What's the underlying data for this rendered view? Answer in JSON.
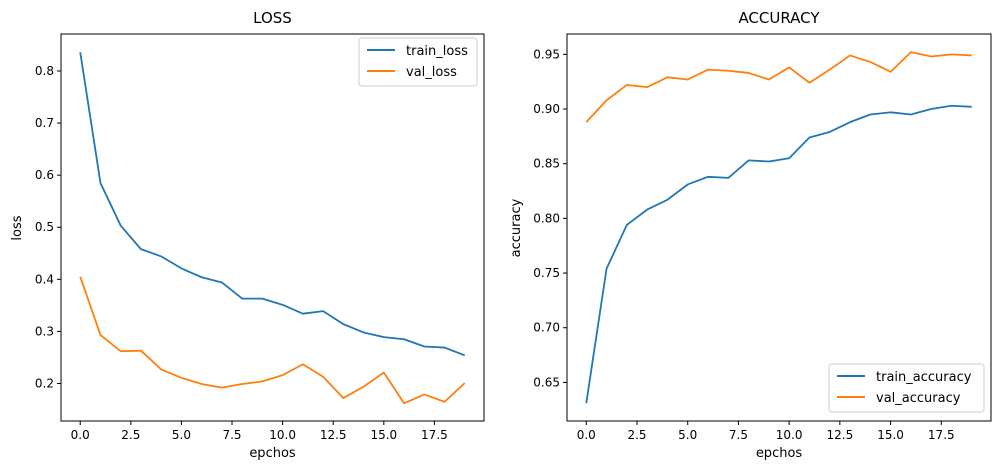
{
  "chart_data": [
    {
      "type": "line",
      "title": "LOSS",
      "xlabel": "epchos",
      "ylabel": "loss",
      "xlim": [
        -0.95,
        19.95
      ],
      "ylim": [
        0.128,
        0.871
      ],
      "xticks": [
        0.0,
        2.5,
        5.0,
        7.5,
        10.0,
        12.5,
        15.0,
        17.5
      ],
      "xtick_labels": [
        "0.0",
        "2.5",
        "5.0",
        "7.5",
        "10.0",
        "12.5",
        "15.0",
        "17.5"
      ],
      "yticks": [
        0.2,
        0.3,
        0.4,
        0.5,
        0.6,
        0.7,
        0.8
      ],
      "ytick_labels": [
        "0.2",
        "0.3",
        "0.4",
        "0.5",
        "0.6",
        "0.7",
        "0.8"
      ],
      "x": [
        0,
        1,
        2,
        3,
        4,
        5,
        6,
        7,
        8,
        9,
        10,
        11,
        12,
        13,
        14,
        15,
        16,
        17,
        18,
        19
      ],
      "legend_position": "upper-right",
      "grid": false,
      "series": [
        {
          "name": "train_loss",
          "color": "#1f77b4",
          "values": [
            0.836,
            0.585,
            0.503,
            0.458,
            0.444,
            0.421,
            0.404,
            0.394,
            0.363,
            0.363,
            0.351,
            0.334,
            0.339,
            0.314,
            0.298,
            0.289,
            0.285,
            0.271,
            0.269,
            0.254
          ]
        },
        {
          "name": "val_loss",
          "color": "#ff7f0e",
          "values": [
            0.405,
            0.293,
            0.262,
            0.263,
            0.227,
            0.211,
            0.199,
            0.192,
            0.199,
            0.204,
            0.216,
            0.237,
            0.213,
            0.172,
            0.194,
            0.221,
            0.162,
            0.179,
            0.165,
            0.201
          ]
        }
      ]
    },
    {
      "type": "line",
      "title": "ACCURACY",
      "xlabel": "epchos",
      "ylabel": "accuracy",
      "xlim": [
        -0.95,
        19.95
      ],
      "ylim": [
        0.6147,
        0.9686
      ],
      "xticks": [
        0.0,
        2.5,
        5.0,
        7.5,
        10.0,
        12.5,
        15.0,
        17.5
      ],
      "xtick_labels": [
        "0.0",
        "2.5",
        "5.0",
        "7.5",
        "10.0",
        "12.5",
        "15.0",
        "17.5"
      ],
      "yticks": [
        0.65,
        0.7,
        0.75,
        0.8,
        0.85,
        0.9,
        0.95
      ],
      "ytick_labels": [
        "0.65",
        "0.70",
        "0.75",
        "0.80",
        "0.85",
        "0.90",
        "0.95"
      ],
      "x": [
        0,
        1,
        2,
        3,
        4,
        5,
        6,
        7,
        8,
        9,
        10,
        11,
        12,
        13,
        14,
        15,
        16,
        17,
        18,
        19
      ],
      "legend_position": "lower-right",
      "grid": false,
      "series": [
        {
          "name": "train_accuracy",
          "color": "#1f77b4",
          "values": [
            0.631,
            0.754,
            0.794,
            0.808,
            0.817,
            0.831,
            0.838,
            0.837,
            0.853,
            0.852,
            0.855,
            0.874,
            0.879,
            0.888,
            0.895,
            0.897,
            0.895,
            0.9,
            0.903,
            0.902
          ]
        },
        {
          "name": "val_accuracy",
          "color": "#ff7f0e",
          "values": [
            0.888,
            0.908,
            0.922,
            0.92,
            0.929,
            0.927,
            0.936,
            0.935,
            0.933,
            0.927,
            0.938,
            0.924,
            0.936,
            0.949,
            0.943,
            0.934,
            0.952,
            0.948,
            0.95,
            0.949
          ]
        }
      ]
    }
  ]
}
